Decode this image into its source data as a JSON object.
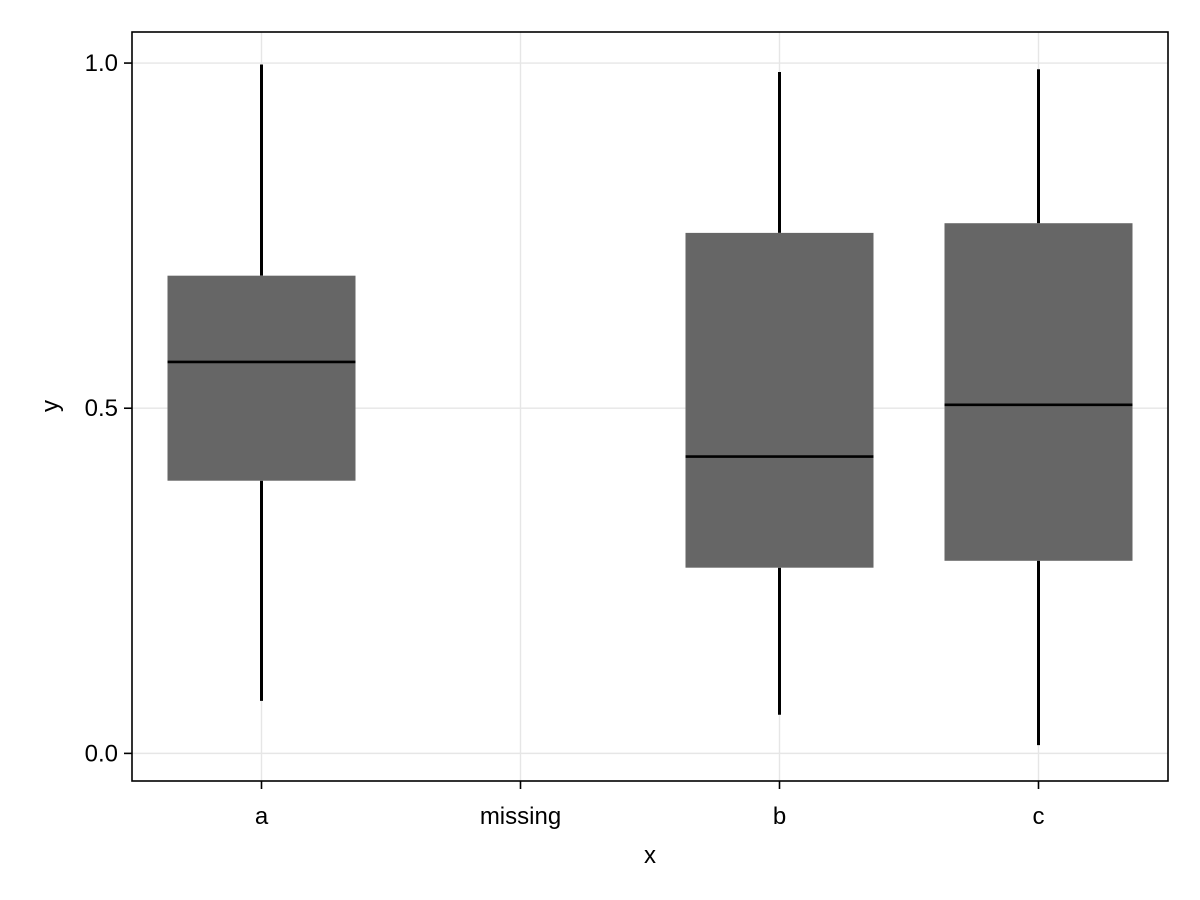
{
  "chart_data": {
    "type": "box",
    "title": "",
    "xlabel": "x",
    "ylabel": "y",
    "categories": [
      "a",
      "missing",
      "b",
      "c"
    ],
    "ylim": [
      -0.04,
      1.045
    ],
    "yticks": [
      0.0,
      0.5,
      1.0
    ],
    "ytick_labels": [
      "0.0",
      "0.5",
      "1.0"
    ],
    "grid": true,
    "boxes": [
      {
        "category": "a",
        "min": 0.076,
        "q1": 0.395,
        "median": 0.567,
        "q3": 0.692,
        "max": 0.998
      },
      {
        "category": "b",
        "min": 0.056,
        "q1": 0.269,
        "median": 0.43,
        "q3": 0.754,
        "max": 0.987
      },
      {
        "category": "c",
        "min": 0.012,
        "q1": 0.279,
        "median": 0.505,
        "q3": 0.768,
        "max": 0.991
      }
    ],
    "colors": {
      "box_fill": "#666666",
      "median_line": "#000000",
      "whisker": "#000000",
      "grid": "#e6e6e6",
      "frame": "#000000"
    }
  }
}
